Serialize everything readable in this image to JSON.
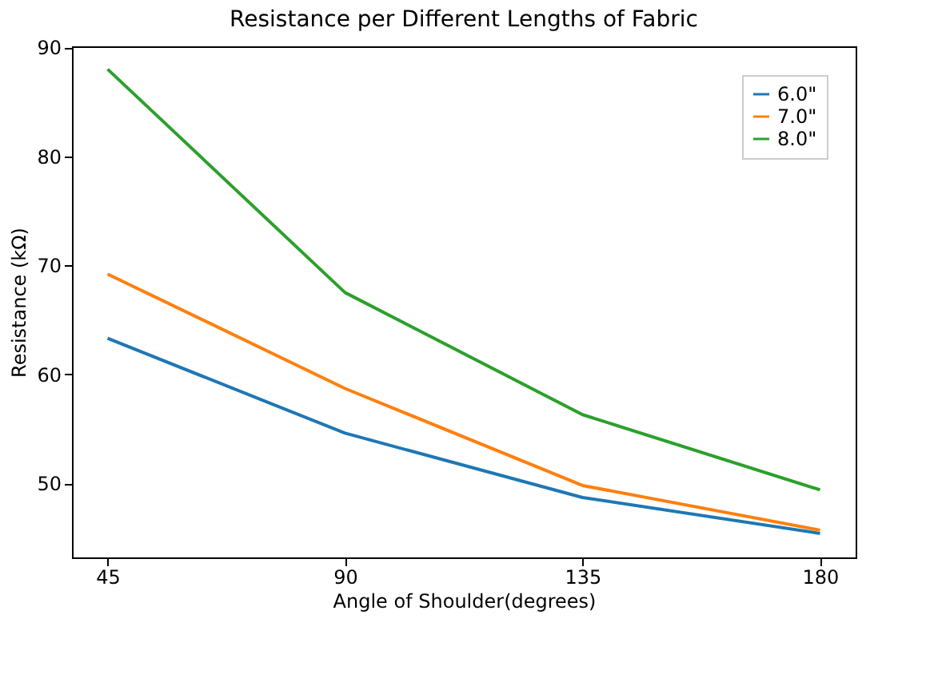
{
  "chart_data": {
    "type": "line",
    "title": "Resistance per Different Lengths of Fabric",
    "xlabel": "Angle of Shoulder(degrees)",
    "ylabel": "Resistance (kΩ)",
    "x": [
      45,
      90,
      135,
      180
    ],
    "series": [
      {
        "name": "6.0\"",
        "color": "#1f77b4",
        "values": [
          63.3,
          54.6,
          48.7,
          45.4
        ]
      },
      {
        "name": "7.0\"",
        "color": "#ff7f0e",
        "values": [
          69.2,
          58.7,
          49.8,
          45.7
        ]
      },
      {
        "name": "8.0\"",
        "color": "#2ca02c",
        "values": [
          88.0,
          67.5,
          56.3,
          49.4
        ]
      }
    ],
    "xlim": [
      38.25,
      186.75
    ],
    "xticks": [
      45,
      90,
      135,
      180
    ],
    "ylim": [
      43.2,
      90.1
    ],
    "yticks": [
      50,
      60,
      70,
      80,
      90
    ],
    "grid": false,
    "legend": "top right",
    "marker": "none",
    "line_style": "solid"
  }
}
